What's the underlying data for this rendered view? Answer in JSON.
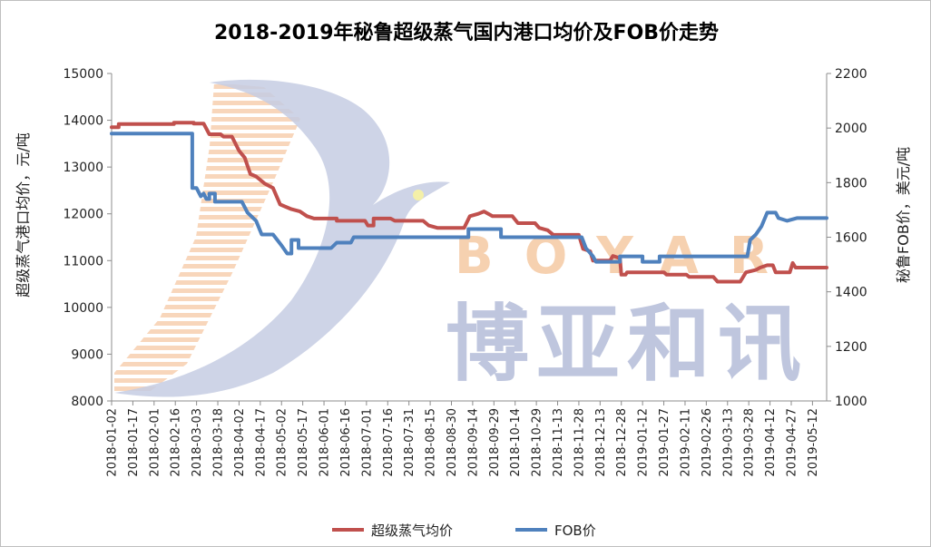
{
  "chart_data": {
    "type": "line",
    "title": "2018-2019年秘鲁超级蒸气国内港口均价及FOB价走势",
    "ylabel": "超级蒸气港口均价，元/吨",
    "y2label": "秘鲁FOB价，美元/吨",
    "ylim": [
      8000,
      15000
    ],
    "y2lim": [
      1000,
      2200
    ],
    "yticks": [
      "8000",
      "9000",
      "10000",
      "11000",
      "12000",
      "13000",
      "14000",
      "15000"
    ],
    "y2ticks": [
      "1000",
      "1200",
      "1400",
      "1600",
      "1800",
      "2000",
      "2200"
    ],
    "xlim": [
      "2018-01-02",
      "2019-05-22"
    ],
    "categories": [
      "2018-01-02",
      "2018-01-17",
      "2018-02-01",
      "2018-02-16",
      "2018-03-03",
      "2018-03-18",
      "2018-04-02",
      "2018-04-17",
      "2018-05-02",
      "2018-05-17",
      "2018-06-01",
      "2018-06-16",
      "2018-07-01",
      "2018-07-16",
      "2018-07-31",
      "2018-08-15",
      "2018-08-30",
      "2018-09-14",
      "2018-09-29",
      "2018-10-14",
      "2018-10-29",
      "2018-11-13",
      "2018-11-28",
      "2018-12-13",
      "2018-12-28",
      "2019-01-12",
      "2019-01-27",
      "2019-02-11",
      "2019-02-26",
      "2019-03-13",
      "2019-03-28",
      "2019-04-12",
      "2019-04-27",
      "2019-05-12"
    ],
    "grid": false,
    "legend": "bottom",
    "series": [
      {
        "name": "超级蒸气均价",
        "axis": "left",
        "color": "#C0504D",
        "points": [
          [
            "2018-01-02",
            13850
          ],
          [
            "2018-01-07",
            13850
          ],
          [
            "2018-01-07",
            13920
          ],
          [
            "2018-02-15",
            13920
          ],
          [
            "2018-02-15",
            13950
          ],
          [
            "2018-03-01",
            13950
          ],
          [
            "2018-03-01",
            13930
          ],
          [
            "2018-03-08",
            13930
          ],
          [
            "2018-03-12",
            13700
          ],
          [
            "2018-03-20",
            13700
          ],
          [
            "2018-03-22",
            13650
          ],
          [
            "2018-03-28",
            13650
          ],
          [
            "2018-04-02",
            13350
          ],
          [
            "2018-04-06",
            13200
          ],
          [
            "2018-04-10",
            12850
          ],
          [
            "2018-04-14",
            12800
          ],
          [
            "2018-04-20",
            12650
          ],
          [
            "2018-04-26",
            12550
          ],
          [
            "2018-05-01",
            12200
          ],
          [
            "2018-05-05",
            12150
          ],
          [
            "2018-05-09",
            12100
          ],
          [
            "2018-05-15",
            12050
          ],
          [
            "2018-05-20",
            11950
          ],
          [
            "2018-05-25",
            11900
          ],
          [
            "2018-06-10",
            11900
          ],
          [
            "2018-06-10",
            11850
          ],
          [
            "2018-06-30",
            11850
          ],
          [
            "2018-07-02",
            11750
          ],
          [
            "2018-07-06",
            11750
          ],
          [
            "2018-07-06",
            11900
          ],
          [
            "2018-07-18",
            11900
          ],
          [
            "2018-07-21",
            11850
          ],
          [
            "2018-08-10",
            11850
          ],
          [
            "2018-08-14",
            11750
          ],
          [
            "2018-08-20",
            11700
          ],
          [
            "2018-09-08",
            11700
          ],
          [
            "2018-09-12",
            11950
          ],
          [
            "2018-09-18",
            12000
          ],
          [
            "2018-09-22",
            12050
          ],
          [
            "2018-09-28",
            11950
          ],
          [
            "2018-10-12",
            11950
          ],
          [
            "2018-10-16",
            11800
          ],
          [
            "2018-10-28",
            11800
          ],
          [
            "2018-10-31",
            11700
          ],
          [
            "2018-11-06",
            11650
          ],
          [
            "2018-11-10",
            11550
          ],
          [
            "2018-11-28",
            11550
          ],
          [
            "2018-12-01",
            11250
          ],
          [
            "2018-12-06",
            11200
          ],
          [
            "2018-12-08",
            11000
          ],
          [
            "2018-12-20",
            11000
          ],
          [
            "2018-12-22",
            11100
          ],
          [
            "2018-12-27",
            11050
          ],
          [
            "2018-12-28",
            10700
          ],
          [
            "2018-12-31",
            10700
          ],
          [
            "2019-01-01",
            10750
          ],
          [
            "2019-01-27",
            10750
          ],
          [
            "2019-01-29",
            10700
          ],
          [
            "2019-02-12",
            10700
          ],
          [
            "2019-02-14",
            10650
          ],
          [
            "2019-03-03",
            10650
          ],
          [
            "2019-03-06",
            10550
          ],
          [
            "2019-03-22",
            10550
          ],
          [
            "2019-03-26",
            10750
          ],
          [
            "2019-04-02",
            10800
          ],
          [
            "2019-04-05",
            10850
          ],
          [
            "2019-04-10",
            10900
          ],
          [
            "2019-04-14",
            10900
          ],
          [
            "2019-04-16",
            10750
          ],
          [
            "2019-04-26",
            10750
          ],
          [
            "2019-04-28",
            10950
          ],
          [
            "2019-04-30",
            10850
          ],
          [
            "2019-05-22",
            10850
          ]
        ]
      },
      {
        "name": "FOB价",
        "axis": "right",
        "color": "#4F81BD",
        "points": [
          [
            "2018-01-02",
            1980
          ],
          [
            "2018-02-28",
            1980
          ],
          [
            "2018-02-28",
            1780
          ],
          [
            "2018-03-03",
            1780
          ],
          [
            "2018-03-06",
            1750
          ],
          [
            "2018-03-08",
            1760
          ],
          [
            "2018-03-10",
            1740
          ],
          [
            "2018-03-12",
            1740
          ],
          [
            "2018-03-12",
            1760
          ],
          [
            "2018-03-16",
            1760
          ],
          [
            "2018-03-16",
            1730
          ],
          [
            "2018-04-04",
            1730
          ],
          [
            "2018-04-08",
            1690
          ],
          [
            "2018-04-14",
            1660
          ],
          [
            "2018-04-18",
            1610
          ],
          [
            "2018-04-26",
            1610
          ],
          [
            "2018-05-02",
            1570
          ],
          [
            "2018-05-06",
            1540
          ],
          [
            "2018-05-09",
            1540
          ],
          [
            "2018-05-09",
            1590
          ],
          [
            "2018-05-14",
            1590
          ],
          [
            "2018-05-14",
            1560
          ],
          [
            "2018-06-06",
            1560
          ],
          [
            "2018-06-10",
            1580
          ],
          [
            "2018-06-20",
            1580
          ],
          [
            "2018-06-22",
            1600
          ],
          [
            "2018-09-11",
            1600
          ],
          [
            "2018-09-11",
            1630
          ],
          [
            "2018-10-04",
            1630
          ],
          [
            "2018-10-04",
            1600
          ],
          [
            "2018-11-30",
            1600
          ],
          [
            "2018-12-03",
            1560
          ],
          [
            "2018-12-08",
            1530
          ],
          [
            "2018-12-10",
            1510
          ],
          [
            "2018-12-27",
            1510
          ],
          [
            "2018-12-27",
            1530
          ],
          [
            "2019-01-12",
            1530
          ],
          [
            "2019-01-12",
            1510
          ],
          [
            "2019-01-24",
            1510
          ],
          [
            "2019-01-24",
            1530
          ],
          [
            "2019-03-27",
            1530
          ],
          [
            "2019-03-29",
            1590
          ],
          [
            "2019-04-02",
            1610
          ],
          [
            "2019-04-06",
            1640
          ],
          [
            "2019-04-10",
            1690
          ],
          [
            "2019-04-16",
            1690
          ],
          [
            "2019-04-18",
            1670
          ],
          [
            "2019-04-24",
            1660
          ],
          [
            "2019-05-01",
            1670
          ],
          [
            "2019-05-22",
            1670
          ]
        ]
      }
    ]
  },
  "watermark": {
    "letters": "BOYAR",
    "cn": "博亚和讯",
    "letter_color": "#F5C9A3",
    "cn_color": "#B4BDD9",
    "bird_color": "#C6CCE3"
  }
}
